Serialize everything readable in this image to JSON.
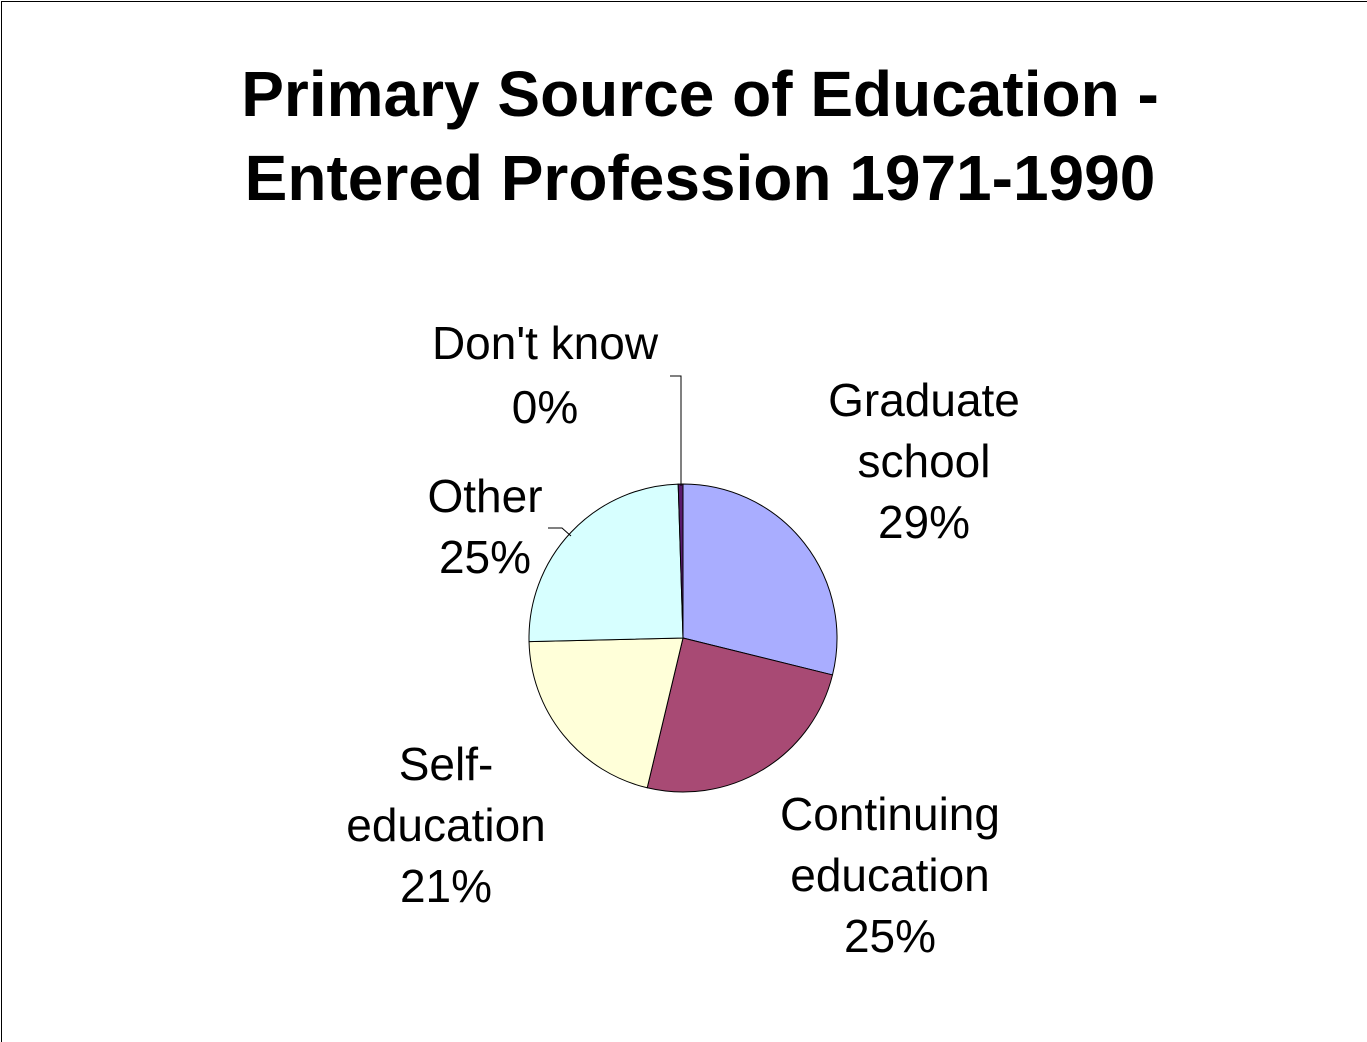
{
  "chart_data": {
    "type": "pie",
    "title_lines": [
      "Primary Source of Education -",
      "Entered Profession 1971-1990"
    ],
    "slices": [
      {
        "name": "Graduate school",
        "label_lines": [
          "Graduate",
          "school",
          "29%"
        ],
        "value": 29,
        "color": "#a9adff"
      },
      {
        "name": "Continuing education",
        "label_lines": [
          "Continuing",
          "education",
          "25%"
        ],
        "value": 25,
        "color": "#a84a74"
      },
      {
        "name": "Self-education",
        "label_lines": [
          "Self-",
          "education",
          "21%"
        ],
        "value": 21,
        "color": "#ffffd9"
      },
      {
        "name": "Other",
        "label_lines": [
          "Other",
          "25%"
        ],
        "value": 25,
        "color": "#d7ffff"
      },
      {
        "name": "Don't know",
        "label_lines": [
          "Don't know",
          "0%"
        ],
        "value": 0.5,
        "color": "#5a1a6e"
      }
    ]
  }
}
